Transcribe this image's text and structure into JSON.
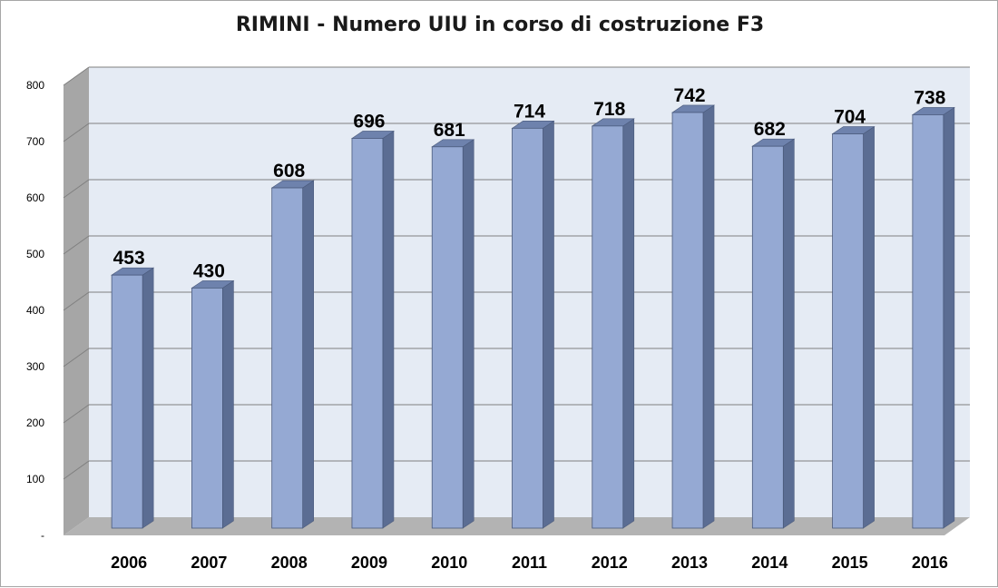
{
  "chart_data": {
    "type": "bar",
    "title": "RIMINI - Numero UIU in corso di costruzione F3",
    "categories": [
      "2006",
      "2007",
      "2008",
      "2009",
      "2010",
      "2011",
      "2012",
      "2013",
      "2014",
      "2015",
      "2016"
    ],
    "values": [
      453,
      430,
      608,
      696,
      681,
      714,
      718,
      742,
      682,
      704,
      738
    ],
    "ylim": [
      0,
      800
    ],
    "yticks": [
      "-",
      "100",
      "200",
      "300",
      "400",
      "500",
      "600",
      "700",
      "800"
    ],
    "grid": true,
    "legend": "none",
    "colors": {
      "bar_front": "#95a9d3",
      "bar_side": "#5b6d93",
      "bar_top": "#6e82ad",
      "wall": "#e5ebf4",
      "side_wall": "#a6a6a6",
      "floor": "#b3b3b3",
      "gridline": "#7f7f7f"
    }
  }
}
